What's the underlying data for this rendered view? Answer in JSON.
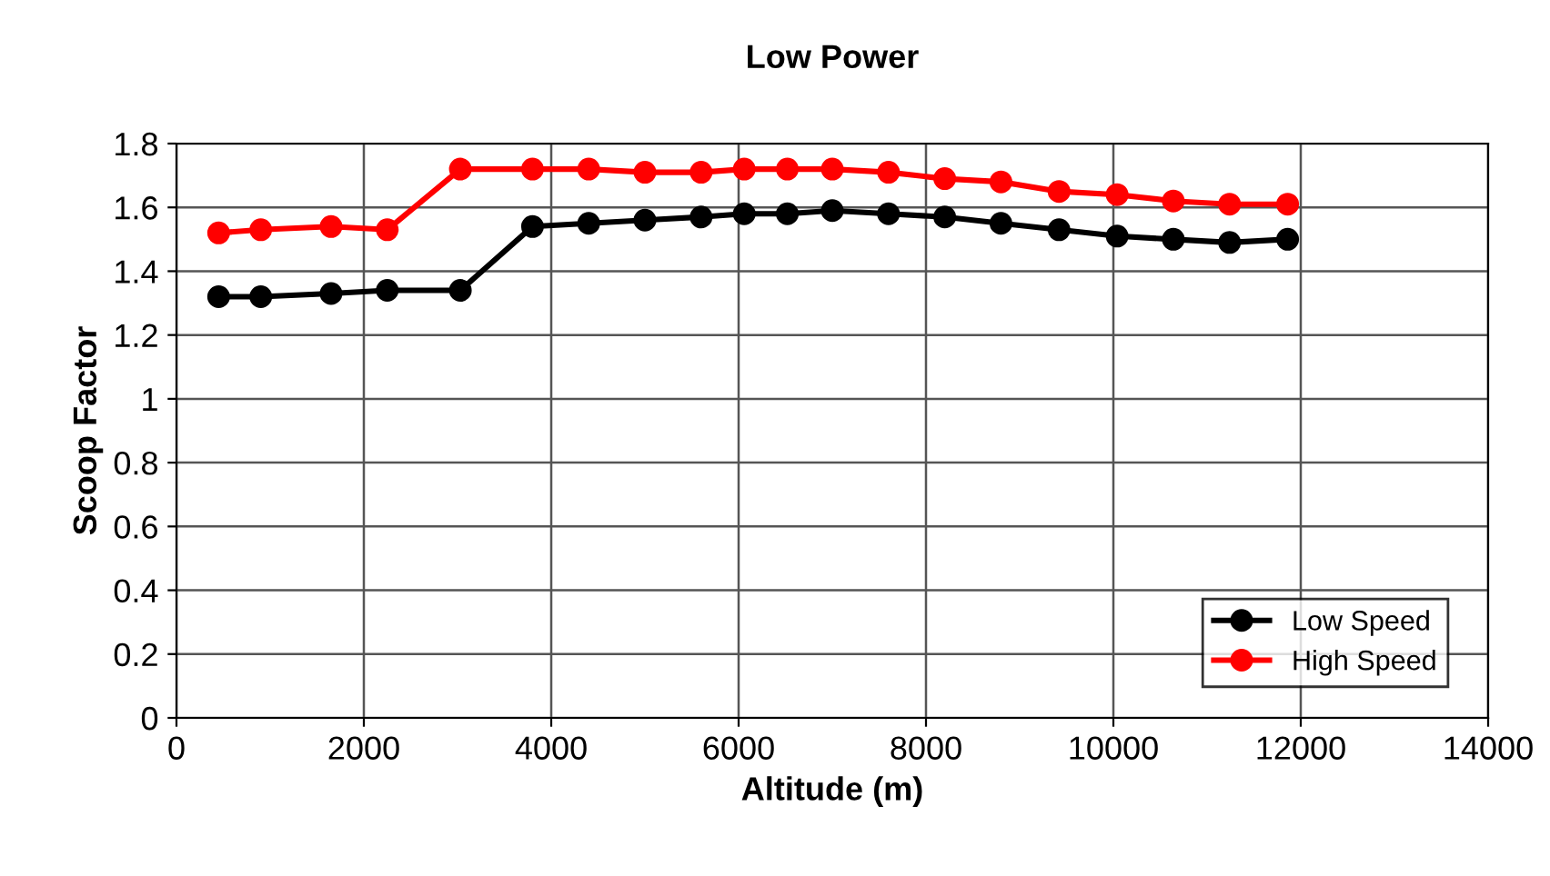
{
  "chart_data": {
    "type": "line",
    "title": "Low Power",
    "xlabel": "Altitude (m)",
    "ylabel": "Scoop Factor",
    "x": [
      450,
      900,
      1650,
      2250,
      3030,
      3800,
      4400,
      5000,
      5600,
      6060,
      6520,
      7000,
      7600,
      8200,
      8800,
      9420,
      10040,
      10640,
      11240,
      11860
    ],
    "series": [
      {
        "name": "Low Speed",
        "color": "#000000",
        "values": [
          1.32,
          1.32,
          1.33,
          1.34,
          1.34,
          1.54,
          1.55,
          1.56,
          1.57,
          1.58,
          1.58,
          1.59,
          1.58,
          1.57,
          1.55,
          1.53,
          1.51,
          1.5,
          1.49,
          1.5
        ]
      },
      {
        "name": "High Speed",
        "color": "#ff0000",
        "values": [
          1.52,
          1.53,
          1.54,
          1.53,
          1.72,
          1.72,
          1.72,
          1.71,
          1.71,
          1.72,
          1.72,
          1.72,
          1.71,
          1.69,
          1.68,
          1.65,
          1.64,
          1.62,
          1.61,
          1.61
        ]
      }
    ],
    "xlim": [
      0,
      14000
    ],
    "xticks": [
      0,
      2000,
      4000,
      6000,
      8000,
      10000,
      12000,
      14000
    ],
    "ylim": [
      0,
      1.8
    ],
    "yticks": [
      0,
      0.2,
      0.4,
      0.6,
      0.8,
      1,
      1.2,
      1.4,
      1.6,
      1.8
    ],
    "grid": true,
    "legend": "bottom right",
    "marker": "circle",
    "line_style": "solid"
  }
}
